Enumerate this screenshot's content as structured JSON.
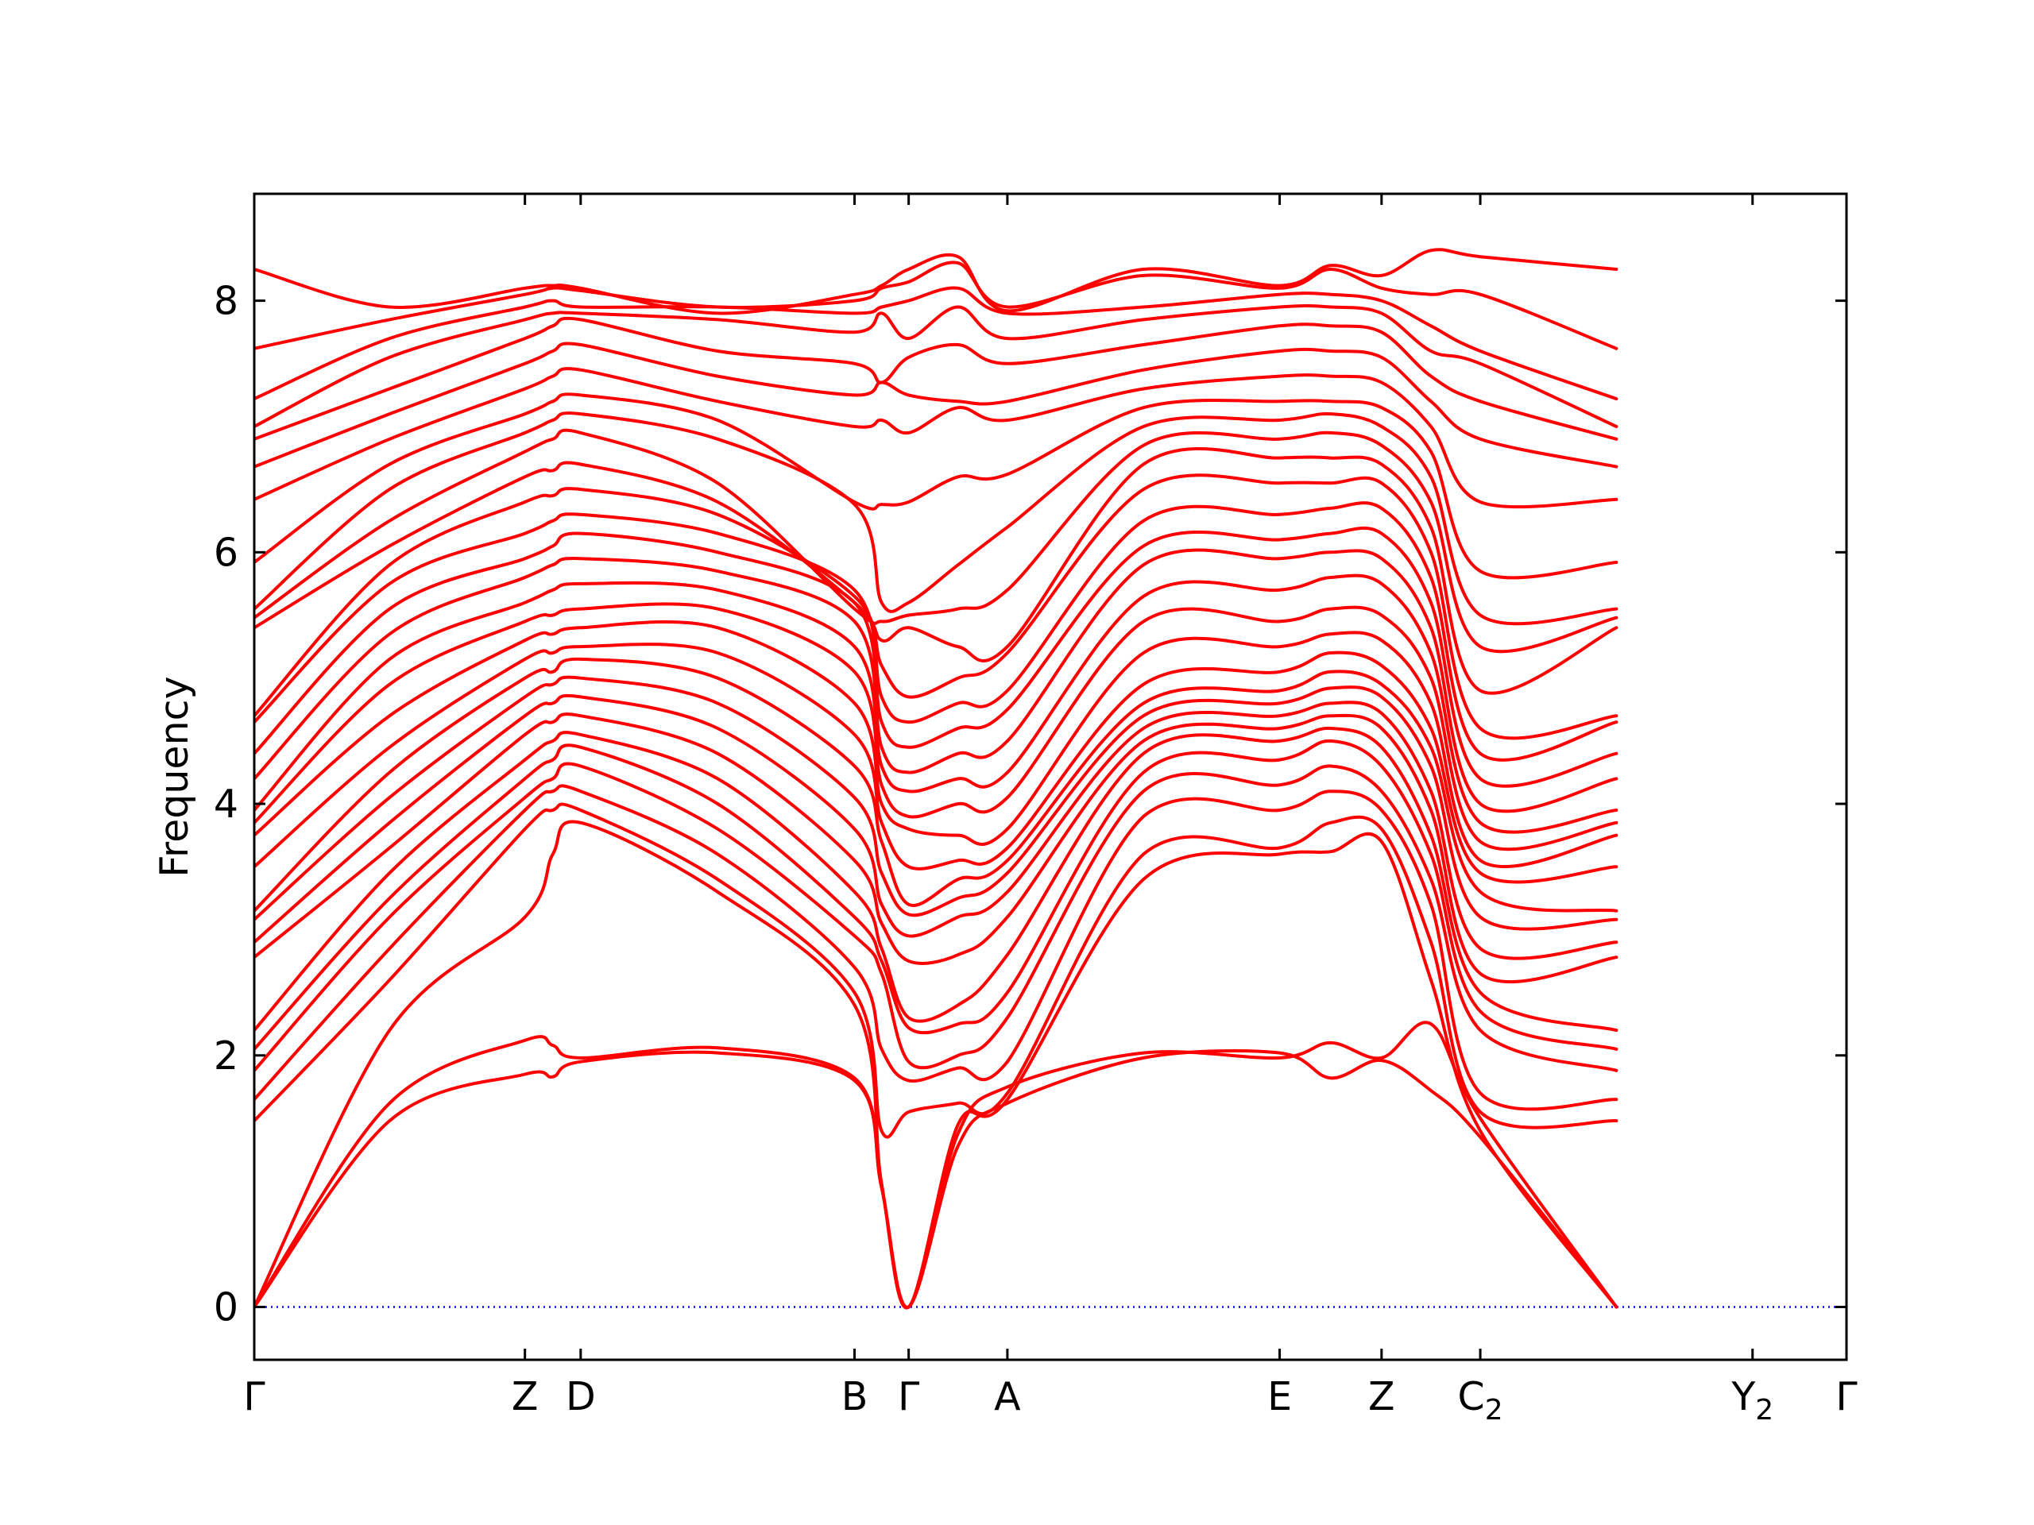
{
  "chart_data": {
    "type": "line",
    "title": "",
    "xlabel": "",
    "ylabel": "Frequency",
    "ylim": [
      -0.42,
      8.85
    ],
    "yticks": [
      0,
      2,
      4,
      6,
      8
    ],
    "grid": false,
    "legend": "none",
    "zero_line": {
      "y": 0,
      "color": "#0000ff",
      "style": "dotted"
    },
    "band_color": "#ff0000",
    "high_symmetry_points": [
      {
        "label": "Γ",
        "sub": "",
        "x": 0.0
      },
      {
        "label": "Z",
        "sub": "",
        "x": 0.17
      },
      {
        "label": "D",
        "sub": "",
        "x": 0.205
      },
      {
        "label": "B",
        "sub": "",
        "x": 0.377
      },
      {
        "label": "Γ",
        "sub": "",
        "x": 0.411
      },
      {
        "label": "A",
        "sub": "",
        "x": 0.473
      },
      {
        "label": "E",
        "sub": "",
        "x": 0.644
      },
      {
        "label": "Z",
        "sub": "",
        "x": 0.708
      },
      {
        "label": "C",
        "sub": "2",
        "x": 0.77
      },
      {
        "label": "Y",
        "sub": "2",
        "x": 0.941
      },
      {
        "label": "Γ",
        "sub": "",
        "x": 1.0
      }
    ],
    "bands": [
      [
        0,
        1.48,
        1.85,
        1.83,
        1.95,
        2.02,
        1.8,
        0.95,
        0,
        1.28,
        1.62,
        1.98,
        2.02,
        1.82,
        1.96,
        1.72,
        1.35,
        0
      ],
      [
        0,
        1.62,
        2.12,
        2.08,
        1.98,
        2.06,
        1.82,
        0.95,
        0,
        1.38,
        1.75,
        2.02,
        1.98,
        2.1,
        1.98,
        2.25,
        1.5,
        0
      ],
      [
        0,
        2.2,
        3.1,
        3.6,
        3.85,
        3.3,
        2.4,
        0.98,
        0,
        1.45,
        1.65,
        3.4,
        3.6,
        3.62,
        3.7,
        2.6,
        1.4,
        0
      ],
      [
        1.48,
        2.6,
        3.8,
        3.95,
        3.95,
        3.4,
        2.5,
        1.4,
        1.55,
        1.62,
        1.7,
        3.6,
        3.65,
        3.85,
        3.8,
        2.9,
        1.55,
        1.48
      ],
      [
        1.65,
        2.85,
        3.95,
        4.1,
        4.1,
        3.6,
        2.7,
        2.05,
        1.8,
        1.9,
        1.95,
        3.9,
        3.95,
        4.1,
        3.95,
        3.2,
        1.7,
        1.65
      ],
      [
        1.88,
        3.1,
        4.05,
        4.2,
        4.3,
        3.8,
        2.95,
        2.65,
        1.95,
        2.0,
        2.3,
        4.1,
        4.15,
        4.3,
        4.1,
        3.4,
        2.2,
        1.88
      ],
      [
        2.05,
        3.25,
        4.2,
        4.35,
        4.45,
        4.0,
        3.1,
        2.75,
        2.22,
        2.25,
        2.5,
        4.25,
        4.35,
        4.5,
        4.3,
        3.6,
        2.35,
        2.05
      ],
      [
        2.2,
        3.45,
        4.35,
        4.5,
        4.55,
        4.2,
        3.3,
        2.85,
        2.3,
        2.4,
        2.8,
        4.4,
        4.5,
        4.6,
        4.45,
        3.75,
        2.5,
        2.2
      ],
      [
        2.78,
        3.65,
        4.55,
        4.65,
        4.7,
        4.4,
        3.55,
        3.05,
        2.75,
        2.8,
        3.1,
        4.5,
        4.6,
        4.7,
        4.6,
        3.95,
        2.65,
        2.78
      ],
      [
        2.9,
        3.85,
        4.7,
        4.8,
        4.85,
        4.6,
        3.8,
        3.2,
        2.95,
        3.1,
        3.3,
        4.6,
        4.7,
        4.8,
        4.72,
        4.1,
        2.85,
        2.9
      ],
      [
        3.08,
        4.05,
        4.85,
        4.95,
        5.0,
        4.8,
        4.05,
        3.45,
        3.12,
        3.25,
        3.45,
        4.7,
        4.8,
        4.92,
        4.85,
        4.3,
        3.1,
        3.08
      ],
      [
        3.15,
        4.25,
        5.0,
        5.05,
        5.15,
        5.0,
        4.3,
        3.7,
        3.2,
        3.4,
        3.55,
        4.8,
        4.9,
        5.05,
        4.95,
        4.45,
        3.3,
        3.15
      ],
      [
        3.5,
        4.45,
        5.15,
        5.2,
        5.25,
        5.2,
        4.55,
        3.85,
        3.5,
        3.55,
        3.65,
        4.95,
        5.05,
        5.2,
        5.1,
        4.6,
        3.45,
        3.5
      ],
      [
        3.75,
        4.7,
        5.3,
        5.35,
        5.4,
        5.4,
        4.8,
        4.0,
        3.8,
        3.75,
        3.8,
        5.2,
        5.25,
        5.35,
        5.3,
        4.8,
        3.55,
        3.75
      ],
      [
        3.85,
        4.95,
        5.45,
        5.5,
        5.55,
        5.55,
        5.05,
        4.15,
        3.9,
        4.0,
        4.05,
        5.45,
        5.45,
        5.55,
        5.5,
        5.0,
        3.7,
        3.85
      ],
      [
        3.95,
        5.15,
        5.6,
        5.7,
        5.75,
        5.7,
        5.25,
        4.3,
        4.1,
        4.2,
        4.25,
        5.65,
        5.7,
        5.8,
        5.75,
        5.2,
        3.85,
        3.95
      ],
      [
        4.2,
        5.35,
        5.8,
        5.9,
        5.95,
        5.85,
        5.45,
        4.45,
        4.25,
        4.4,
        4.5,
        5.9,
        5.95,
        6.0,
        5.95,
        5.4,
        4.0,
        4.2
      ],
      [
        4.4,
        5.55,
        5.95,
        6.05,
        6.15,
        6.0,
        5.6,
        4.65,
        4.45,
        4.6,
        4.75,
        6.05,
        6.1,
        6.15,
        6.15,
        5.6,
        4.2,
        4.4
      ],
      [
        4.65,
        5.75,
        6.15,
        6.25,
        6.3,
        6.15,
        5.7,
        4.85,
        4.65,
        4.8,
        4.9,
        6.25,
        6.3,
        6.35,
        6.35,
        5.8,
        4.4,
        4.65
      ],
      [
        4.7,
        5.9,
        6.4,
        6.45,
        6.5,
        6.3,
        5.65,
        5.1,
        4.85,
        5.0,
        5.2,
        6.5,
        6.55,
        6.55,
        6.55,
        6.0,
        4.6,
        4.7
      ],
      [
        5.4,
        6.05,
        6.6,
        6.65,
        6.7,
        6.4,
        5.6,
        5.3,
        5.4,
        5.25,
        5.25,
        6.7,
        6.75,
        6.75,
        6.7,
        6.2,
        4.9,
        5.4
      ],
      [
        5.48,
        6.25,
        6.8,
        6.9,
        6.95,
        6.55,
        5.55,
        5.45,
        5.5,
        5.55,
        5.7,
        6.85,
        6.9,
        6.95,
        6.85,
        6.4,
        5.25,
        5.48
      ],
      [
        5.55,
        6.5,
        6.95,
        7.05,
        7.1,
        6.9,
        6.38,
        5.6,
        5.6,
        5.9,
        6.2,
        7.0,
        7.05,
        7.1,
        7.0,
        6.6,
        5.5,
        5.55
      ],
      [
        5.92,
        6.7,
        7.1,
        7.2,
        7.25,
        7.05,
        6.4,
        6.38,
        6.4,
        6.6,
        6.62,
        7.15,
        7.2,
        7.2,
        7.15,
        6.8,
        5.85,
        5.92
      ],
      [
        6.42,
        6.9,
        7.3,
        7.4,
        7.45,
        7.2,
        7.0,
        7.05,
        6.95,
        7.15,
        7.05,
        7.3,
        7.4,
        7.4,
        7.35,
        7.0,
        6.4,
        6.42
      ],
      [
        6.68,
        7.1,
        7.5,
        7.6,
        7.65,
        7.4,
        7.25,
        7.35,
        7.25,
        7.2,
        7.2,
        7.45,
        7.6,
        7.6,
        7.55,
        7.2,
        6.9,
        6.68
      ],
      [
        6.9,
        7.3,
        7.7,
        7.8,
        7.85,
        7.6,
        7.5,
        7.35,
        7.55,
        7.65,
        7.5,
        7.65,
        7.8,
        7.8,
        7.75,
        7.4,
        7.2,
        6.9
      ],
      [
        7.0,
        7.55,
        7.85,
        7.9,
        7.9,
        7.85,
        7.75,
        7.9,
        7.7,
        7.95,
        7.7,
        7.85,
        7.95,
        7.95,
        7.9,
        7.6,
        7.5,
        7.0
      ],
      [
        7.22,
        7.7,
        7.95,
        8.0,
        7.95,
        7.95,
        7.9,
        7.95,
        8.0,
        8.1,
        7.9,
        7.95,
        8.05,
        8.05,
        8.0,
        7.8,
        7.6,
        7.22
      ],
      [
        7.62,
        7.85,
        8.05,
        8.1,
        8.08,
        7.95,
        8.0,
        8.1,
        8.15,
        8.3,
        7.95,
        8.2,
        8.1,
        8.25,
        8.1,
        8.05,
        8.05,
        7.62
      ],
      [
        8.25,
        7.95,
        8.1,
        8.12,
        8.1,
        7.9,
        8.05,
        8.12,
        8.25,
        8.35,
        7.92,
        8.25,
        8.12,
        8.28,
        8.2,
        8.4,
        8.35,
        8.25
      ]
    ]
  }
}
